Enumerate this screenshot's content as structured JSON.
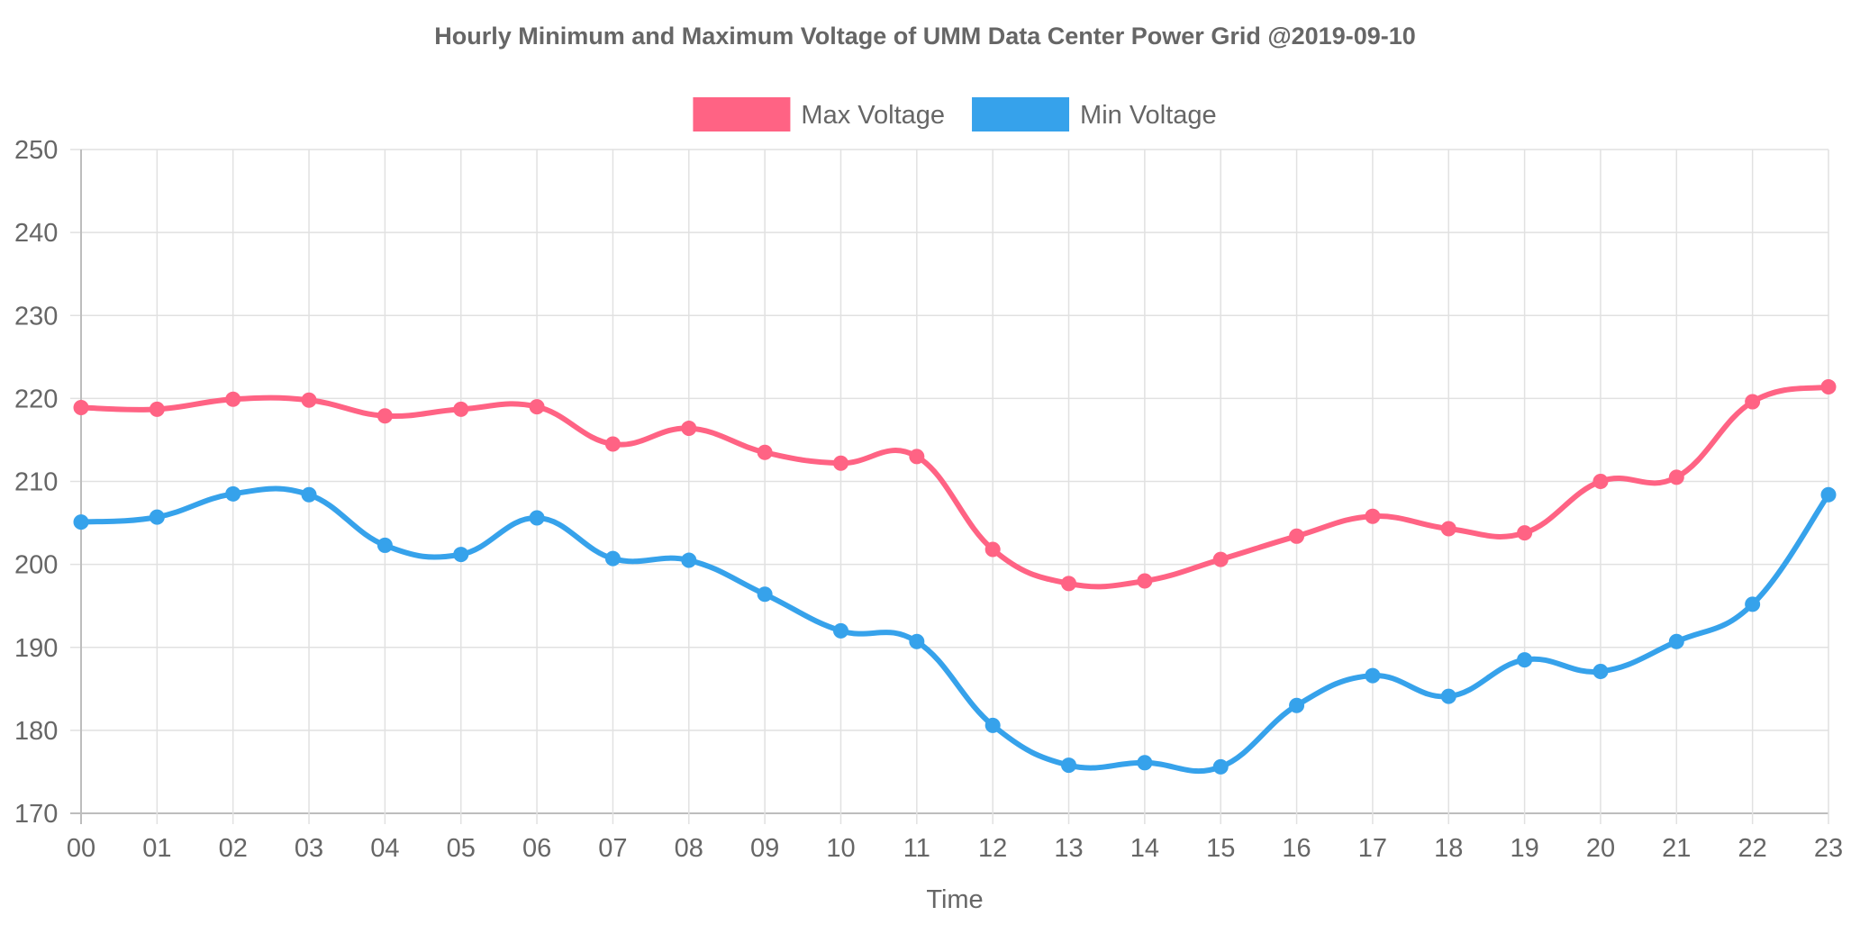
{
  "chart_data": {
    "type": "line",
    "title": "Hourly Minimum and Maximum Voltage of UMM Data Center Power Grid @2019-09-10",
    "xlabel": "Time",
    "ylabel": "",
    "categories": [
      "00",
      "01",
      "02",
      "03",
      "04",
      "05",
      "06",
      "07",
      "08",
      "09",
      "10",
      "11",
      "12",
      "13",
      "14",
      "15",
      "16",
      "17",
      "18",
      "19",
      "20",
      "21",
      "22",
      "23"
    ],
    "ylim": [
      170,
      250
    ],
    "yticks": [
      "170",
      "180",
      "190",
      "200",
      "210",
      "220",
      "230",
      "240",
      "250"
    ],
    "grid": true,
    "legend_position": "top",
    "series": [
      {
        "name": "Max Voltage",
        "color": "#ff6384",
        "values": [
          218.9,
          218.7,
          219.9,
          219.8,
          217.9,
          218.7,
          219.0,
          214.5,
          216.4,
          213.5,
          212.2,
          213.0,
          201.8,
          197.7,
          198.0,
          200.6,
          203.4,
          205.8,
          204.3,
          203.8,
          210.0,
          210.5,
          219.6,
          221.4
        ]
      },
      {
        "name": "Min Voltage",
        "color": "#36a2eb",
        "values": [
          205.1,
          205.7,
          208.5,
          208.4,
          202.3,
          201.2,
          205.6,
          200.7,
          200.5,
          196.4,
          192.0,
          190.7,
          180.6,
          175.8,
          176.1,
          175.6,
          183.0,
          186.6,
          184.1,
          188.5,
          187.1,
          190.7,
          195.2,
          208.4
        ]
      }
    ]
  }
}
